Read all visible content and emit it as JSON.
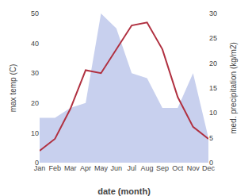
{
  "chart_data": {
    "type": "line",
    "categories": [
      "Jan",
      "Feb",
      "Mar",
      "Apr",
      "May",
      "Jun",
      "Jul",
      "Aug",
      "Sep",
      "Oct",
      "Nov",
      "Dec"
    ],
    "series": [
      {
        "type": "area",
        "axis": "y2",
        "color": "#c8d0ee",
        "values": [
          9,
          9,
          11,
          12,
          30,
          27,
          18,
          17,
          11,
          11,
          18,
          5
        ]
      },
      {
        "type": "line",
        "color": "#b03040",
        "values": [
          4,
          8,
          18,
          31,
          30,
          38,
          46,
          47,
          38,
          22,
          12,
          8
        ]
      }
    ],
    "xlabel": "date (month)",
    "ylabel": "max temp (C)",
    "y2label": "med. precipitation (kg/m2)",
    "ylim": [
      0,
      50
    ],
    "yticks": [
      0,
      10,
      20,
      30,
      40,
      50
    ],
    "y2lim": [
      0,
      30
    ],
    "y2ticks": [
      0,
      5,
      10,
      15,
      20,
      25,
      30
    ],
    "grid": false
  }
}
